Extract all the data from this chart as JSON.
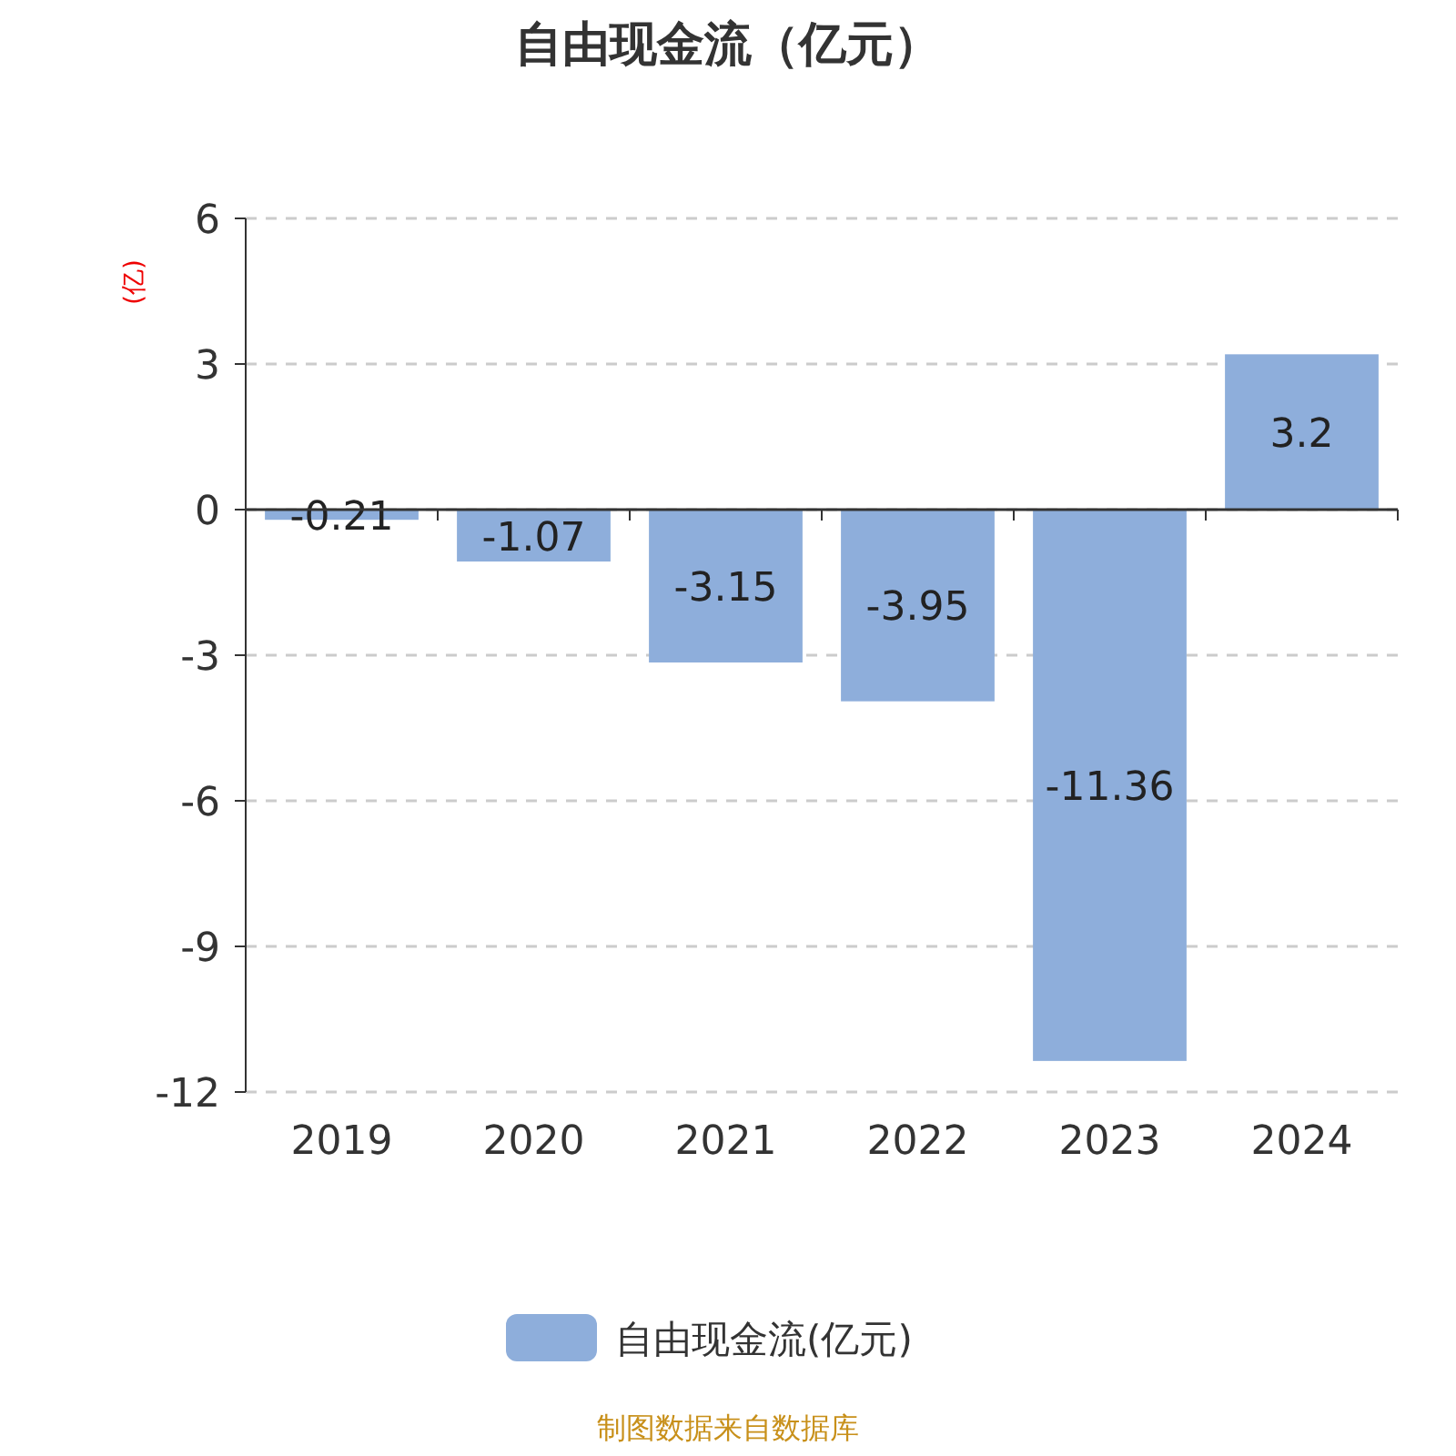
{
  "chart_data": {
    "type": "bar",
    "title": "自由现金流（亿元）",
    "ylabel": "(亿)",
    "categories": [
      "2019",
      "2020",
      "2021",
      "2022",
      "2023",
      "2024"
    ],
    "series": [
      {
        "name": "自由现金流(亿元)",
        "color": "#8eaedb",
        "values": [
          -0.21,
          -1.07,
          -3.15,
          -3.95,
          -11.36,
          3.2
        ]
      }
    ],
    "ylim": [
      -12,
      6
    ],
    "yticks": [
      -12,
      -9,
      -6,
      -3,
      0,
      3,
      6
    ],
    "grid": "y",
    "legend": "bottom",
    "data_labels": true,
    "annotations": [
      "制图数据来自数据库"
    ]
  }
}
